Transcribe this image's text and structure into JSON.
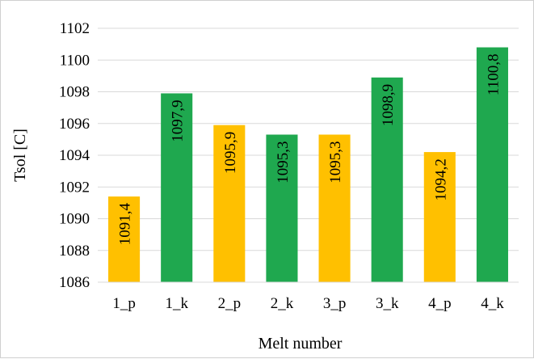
{
  "chart_data": {
    "type": "bar",
    "categories": [
      "1_p",
      "1_k",
      "2_p",
      "2_k",
      "3_p",
      "3_k",
      "4_p",
      "4_k"
    ],
    "values": [
      1091.4,
      1097.9,
      1095.9,
      1095.3,
      1095.3,
      1098.9,
      1094.2,
      1100.8
    ],
    "value_labels": [
      "1091,4",
      "1097,9",
      "1095,9",
      "1095,3",
      "1095,3",
      "1098,9",
      "1094,2",
      "1100,8"
    ],
    "bar_colors": [
      "#FFC000",
      "#1FA84F",
      "#FFC000",
      "#1FA84F",
      "#FFC000",
      "#1FA84F",
      "#FFC000",
      "#1FA84F"
    ],
    "title": "",
    "xlabel": "Melt number",
    "ylabel": "Tsol [C]",
    "ylim": [
      1086,
      1102
    ],
    "yticks": [
      1086,
      1088,
      1090,
      1092,
      1094,
      1096,
      1098,
      1100,
      1102
    ],
    "grid": true,
    "grid_color": "#d9d9d9",
    "legend": "none"
  }
}
